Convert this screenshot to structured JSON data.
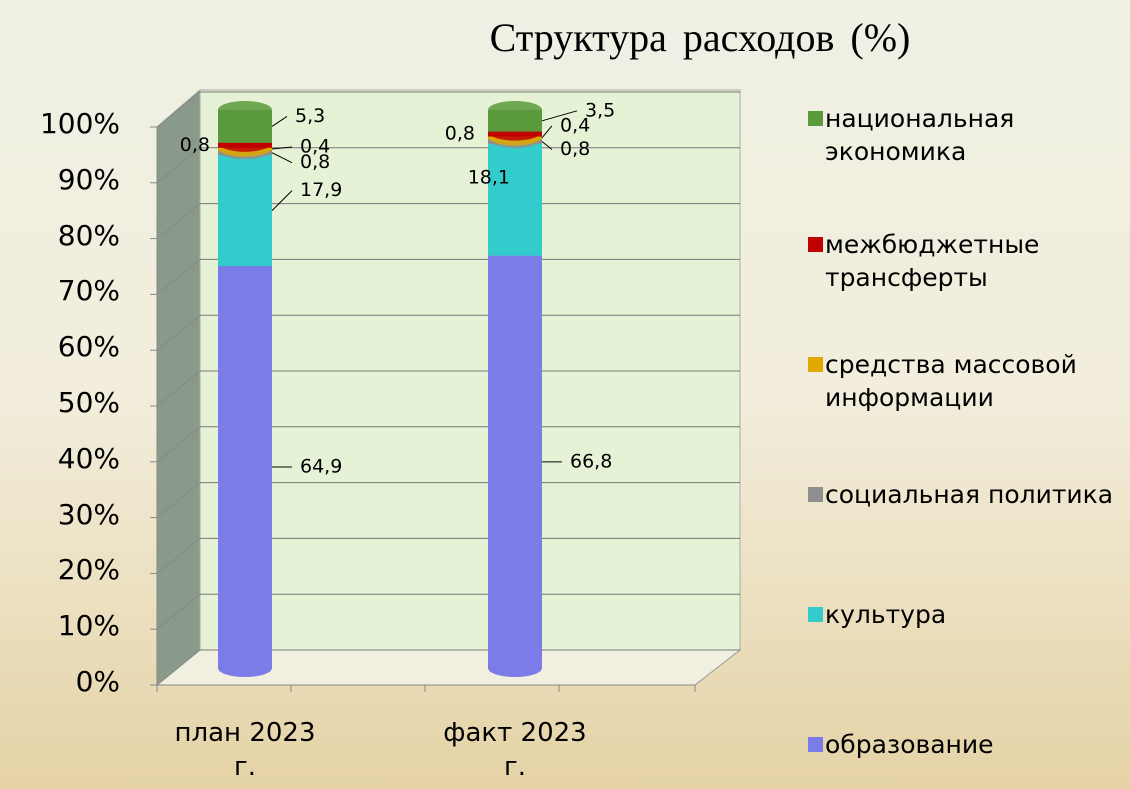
{
  "chart_data": {
    "type": "bar",
    "stacking": "percent",
    "title": "Структура расходов (%)",
    "categories": [
      "план 2023 г.",
      "факт 2023 г."
    ],
    "ylim": [
      0,
      100
    ],
    "yticks": [
      {
        "value": 0,
        "label": "0%"
      },
      {
        "value": 10,
        "label": "10%"
      },
      {
        "value": 20,
        "label": "20%"
      },
      {
        "value": 30,
        "label": "30%"
      },
      {
        "value": 40,
        "label": "40%"
      },
      {
        "value": 50,
        "label": "50%"
      },
      {
        "value": 60,
        "label": "60%"
      },
      {
        "value": 70,
        "label": "70%"
      },
      {
        "value": 80,
        "label": "80%"
      },
      {
        "value": 90,
        "label": "90%"
      },
      {
        "value": 100,
        "label": "100%"
      }
    ],
    "grid": true,
    "series": [
      {
        "name": "образование",
        "color": "#7c7ce8",
        "values": [
          64.9,
          66.8
        ],
        "value_labels": [
          "64,9",
          "66,8"
        ]
      },
      {
        "name": "культура",
        "color": "#33cccc",
        "values": [
          17.9,
          18.1
        ],
        "value_labels": [
          "17,9",
          "18,1"
        ]
      },
      {
        "name": "социальная политика",
        "color": "#8f8f8f",
        "values": [
          0.8,
          0.8
        ],
        "value_labels": [
          "0,8",
          "0,8"
        ]
      },
      {
        "name": "средства массовой информации",
        "color": "#e0a800",
        "values": [
          0.4,
          0.4
        ],
        "value_labels": [
          "0,4",
          "0,4"
        ]
      },
      {
        "name": "межбюджетные трансферты",
        "color": "#c00000",
        "values": [
          0.8,
          0.8
        ],
        "value_labels": [
          "0,8",
          "0,8"
        ]
      },
      {
        "name": "национальная экономика",
        "color": "#5a9a3c",
        "values": [
          5.3,
          3.5
        ],
        "value_labels": [
          "5,3",
          "3,5"
        ]
      }
    ]
  }
}
